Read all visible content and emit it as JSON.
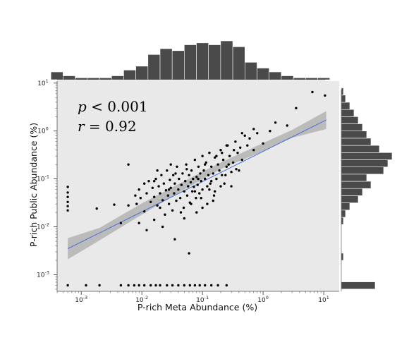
{
  "chart_data": {
    "type": "scatter",
    "xlabel": "P-rich Meta Abundance (%)",
    "ylabel": "P-rich Public Abundance (%)",
    "x_scale": "log",
    "y_scale": "log",
    "xlim": [
      0.0004,
      18
    ],
    "ylim": [
      0.00045,
      11
    ],
    "x_ticks": [
      {
        "value": 0.001,
        "base": "10",
        "exp": "-3"
      },
      {
        "value": 0.01,
        "base": "10",
        "exp": "-2"
      },
      {
        "value": 0.1,
        "base": "10",
        "exp": "-1"
      },
      {
        "value": 1,
        "base": "10",
        "exp": "0"
      },
      {
        "value": 10,
        "base": "10",
        "exp": "1"
      }
    ],
    "y_ticks": [
      {
        "value": 0.001,
        "base": "10",
        "exp": "-3"
      },
      {
        "value": 0.01,
        "base": "10",
        "exp": "-2"
      },
      {
        "value": 0.1,
        "base": "10",
        "exp": "-1"
      },
      {
        "value": 1,
        "base": "10",
        "exp": "0"
      },
      {
        "value": 10,
        "base": "10",
        "exp": "1"
      }
    ],
    "annotations": {
      "p_var": "p",
      "p_text": " < 0.001",
      "r_var": "r",
      "r_text": " = 0.92"
    },
    "regression": {
      "x": [
        0.0006,
        11
      ],
      "y": [
        0.0035,
        1.7
      ]
    },
    "confidence_band": {
      "x": [
        0.0006,
        0.002,
        0.01,
        0.05,
        0.2,
        1,
        3,
        11
      ],
      "upper": [
        0.0058,
        0.0095,
        0.031,
        0.09,
        0.22,
        0.56,
        1.05,
        2.6
      ],
      "lower": [
        0.0021,
        0.0052,
        0.018,
        0.06,
        0.16,
        0.38,
        0.72,
        1.1
      ]
    },
    "points": [
      [
        0.0006,
        0.068
      ],
      [
        0.0006,
        0.052
      ],
      [
        0.0006,
        0.042
      ],
      [
        0.0006,
        0.033
      ],
      [
        0.0006,
        0.027
      ],
      [
        0.0006,
        0.022
      ],
      [
        0.0006,
        0.0006
      ],
      [
        0.0012,
        0.0006
      ],
      [
        0.002,
        0.0006
      ],
      [
        0.0045,
        0.0006
      ],
      [
        0.006,
        0.0006
      ],
      [
        0.0075,
        0.0006
      ],
      [
        0.009,
        0.0006
      ],
      [
        0.011,
        0.0006
      ],
      [
        0.014,
        0.0006
      ],
      [
        0.017,
        0.0006
      ],
      [
        0.02,
        0.0006
      ],
      [
        0.026,
        0.0006
      ],
      [
        0.032,
        0.0006
      ],
      [
        0.04,
        0.0006
      ],
      [
        0.05,
        0.0006
      ],
      [
        0.062,
        0.0006
      ],
      [
        0.075,
        0.0006
      ],
      [
        0.09,
        0.0006
      ],
      [
        0.11,
        0.0006
      ],
      [
        0.14,
        0.0006
      ],
      [
        0.18,
        0.0006
      ],
      [
        0.25,
        0.0006
      ],
      [
        0.0018,
        0.024
      ],
      [
        0.0035,
        0.029
      ],
      [
        0.0045,
        0.012
      ],
      [
        0.006,
        0.028
      ],
      [
        0.0078,
        0.045
      ],
      [
        0.0082,
        0.03
      ],
      [
        0.009,
        0.06
      ],
      [
        0.0095,
        0.04
      ],
      [
        0.011,
        0.08
      ],
      [
        0.011,
        0.021
      ],
      [
        0.012,
        0.05
      ],
      [
        0.013,
        0.09
      ],
      [
        0.014,
        0.033
      ],
      [
        0.015,
        0.065
      ],
      [
        0.016,
        0.014
      ],
      [
        0.016,
        0.042
      ],
      [
        0.017,
        0.1
      ],
      [
        0.018,
        0.028
      ],
      [
        0.019,
        0.07
      ],
      [
        0.02,
        0.05
      ],
      [
        0.021,
        0.12
      ],
      [
        0.022,
        0.036
      ],
      [
        0.023,
        0.08
      ],
      [
        0.024,
        0.018
      ],
      [
        0.025,
        0.058
      ],
      [
        0.026,
        0.15
      ],
      [
        0.027,
        0.045
      ],
      [
        0.028,
        0.03
      ],
      [
        0.029,
        0.095
      ],
      [
        0.03,
        0.065
      ],
      [
        0.032,
        0.022
      ],
      [
        0.033,
        0.12
      ],
      [
        0.034,
        0.05
      ],
      [
        0.035,
        0.08
      ],
      [
        0.037,
        0.035
      ],
      [
        0.038,
        0.18
      ],
      [
        0.04,
        0.06
      ],
      [
        0.041,
        0.1
      ],
      [
        0.043,
        0.04
      ],
      [
        0.045,
        0.075
      ],
      [
        0.047,
        0.13
      ],
      [
        0.049,
        0.025
      ],
      [
        0.05,
        0.055
      ],
      [
        0.052,
        0.09
      ],
      [
        0.054,
        0.2
      ],
      [
        0.056,
        0.045
      ],
      [
        0.058,
        0.07
      ],
      [
        0.06,
        0.12
      ],
      [
        0.062,
        0.032
      ],
      [
        0.064,
        0.085
      ],
      [
        0.066,
        0.15
      ],
      [
        0.068,
        0.055
      ],
      [
        0.07,
        0.1
      ],
      [
        0.072,
        0.068
      ],
      [
        0.075,
        0.25
      ],
      [
        0.078,
        0.04
      ],
      [
        0.08,
        0.11
      ],
      [
        0.083,
        0.075
      ],
      [
        0.086,
        0.18
      ],
      [
        0.089,
        0.05
      ],
      [
        0.092,
        0.13
      ],
      [
        0.095,
        0.09
      ],
      [
        0.1,
        0.3
      ],
      [
        0.1,
        0.06
      ],
      [
        0.105,
        0.15
      ],
      [
        0.11,
        0.1
      ],
      [
        0.115,
        0.22
      ],
      [
        0.12,
        0.07
      ],
      [
        0.125,
        0.12
      ],
      [
        0.13,
        0.35
      ],
      [
        0.135,
        0.08
      ],
      [
        0.14,
        0.18
      ],
      [
        0.15,
        0.13
      ],
      [
        0.155,
        0.045
      ],
      [
        0.16,
        0.28
      ],
      [
        0.17,
        0.1
      ],
      [
        0.18,
        0.2
      ],
      [
        0.19,
        0.15
      ],
      [
        0.2,
        0.4
      ],
      [
        0.21,
        0.12
      ],
      [
        0.22,
        0.25
      ],
      [
        0.23,
        0.08
      ],
      [
        0.25,
        0.18
      ],
      [
        0.26,
        0.5
      ],
      [
        0.28,
        0.3
      ],
      [
        0.3,
        0.14
      ],
      [
        0.32,
        0.22
      ],
      [
        0.35,
        0.6
      ],
      [
        0.38,
        0.35
      ],
      [
        0.42,
        0.45
      ],
      [
        0.45,
        0.25
      ],
      [
        0.5,
        0.8
      ],
      [
        0.55,
        0.5
      ],
      [
        0.6,
        0.7
      ],
      [
        0.7,
        1.1
      ],
      [
        0.8,
        0.9
      ],
      [
        1.0,
        0.55
      ],
      [
        1.3,
        1.0
      ],
      [
        1.6,
        1.5
      ],
      [
        2.5,
        1.3
      ],
      [
        3.5,
        3.0
      ],
      [
        6.5,
        6.5
      ],
      [
        10.5,
        5.5
      ],
      [
        0.006,
        0.2
      ],
      [
        0.009,
        0.012
      ],
      [
        0.012,
        0.0085
      ],
      [
        0.018,
        0.15
      ],
      [
        0.022,
        0.01
      ],
      [
        0.03,
        0.2
      ],
      [
        0.035,
        0.0055
      ],
      [
        0.06,
        0.0028
      ],
      [
        0.05,
        0.015
      ],
      [
        0.08,
        0.02
      ],
      [
        0.1,
        0.025
      ],
      [
        0.12,
        0.03
      ],
      [
        0.15,
        0.035
      ],
      [
        0.3,
        0.07
      ],
      [
        0.25,
        0.5
      ],
      [
        0.4,
        0.15
      ],
      [
        0.45,
        0.9
      ],
      [
        0.7,
        0.4
      ],
      [
        0.2,
        0.07
      ],
      [
        0.016,
        0.09
      ],
      [
        0.02,
        0.025
      ],
      [
        0.028,
        0.06
      ],
      [
        0.036,
        0.13
      ],
      [
        0.044,
        0.02
      ],
      [
        0.055,
        0.16
      ],
      [
        0.065,
        0.03
      ],
      [
        0.075,
        0.055
      ],
      [
        0.085,
        0.1
      ],
      [
        0.095,
        0.04
      ],
      [
        0.11,
        0.2
      ],
      [
        0.13,
        0.06
      ],
      [
        0.14,
        0.09
      ],
      [
        0.16,
        0.055
      ],
      [
        0.17,
        0.3
      ],
      [
        0.21,
        0.35
      ],
      [
        0.24,
        0.12
      ],
      [
        0.27,
        0.2
      ],
      [
        0.33,
        0.4
      ],
      [
        0.36,
        0.16
      ]
    ],
    "top_histogram": {
      "bin_edges_log10": [
        -3.5,
        -3.3,
        -3.1,
        -2.9,
        -2.7,
        -2.5,
        -2.3,
        -2.1,
        -1.9,
        -1.7,
        -1.5,
        -1.3,
        -1.1,
        -0.9,
        -0.7,
        -0.5,
        -0.3,
        -0.1,
        0.1,
        0.3,
        0.5,
        0.7,
        0.9,
        1.1
      ],
      "counts": [
        4,
        2,
        1,
        1,
        1,
        2,
        5,
        7,
        13,
        16,
        15,
        18,
        19,
        18,
        20,
        17,
        9,
        6,
        4,
        2,
        1,
        1,
        1
      ]
    },
    "right_histogram": {
      "bin_edges_log10": [
        -3.3,
        -3.15,
        -3.0,
        -2.85,
        -2.7,
        -2.55,
        -2.4,
        -2.25,
        -2.1,
        -1.95,
        -1.8,
        -1.65,
        -1.5,
        -1.35,
        -1.2,
        -1.05,
        -0.9,
        -0.75,
        -0.6,
        -0.45,
        -0.3,
        -0.15,
        0.0,
        0.15,
        0.3,
        0.45,
        0.6,
        0.75,
        0.9
      ],
      "counts": [
        16,
        0,
        0,
        0,
        1,
        0,
        0,
        0,
        0,
        1,
        2,
        4,
        8,
        10,
        14,
        12,
        20,
        22,
        24,
        18,
        14,
        12,
        10,
        8,
        6,
        4,
        2,
        1,
        0
      ]
    }
  }
}
